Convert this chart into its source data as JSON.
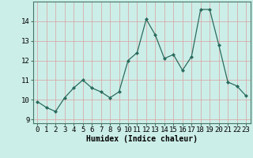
{
  "x": [
    0,
    1,
    2,
    3,
    4,
    5,
    6,
    7,
    8,
    9,
    10,
    11,
    12,
    13,
    14,
    15,
    16,
    17,
    18,
    19,
    20,
    21,
    22,
    23
  ],
  "y": [
    9.9,
    9.6,
    9.4,
    10.1,
    10.6,
    11.0,
    10.6,
    10.4,
    10.1,
    10.4,
    12.0,
    12.4,
    14.1,
    13.3,
    12.1,
    12.3,
    11.5,
    12.2,
    14.6,
    14.6,
    12.8,
    10.9,
    10.7,
    10.2
  ],
  "xlabel": "Humidex (Indice chaleur)",
  "xlim": [
    -0.5,
    23.5
  ],
  "ylim": [
    8.8,
    15.0
  ],
  "yticks": [
    9,
    10,
    11,
    12,
    13,
    14
  ],
  "xticks": [
    0,
    1,
    2,
    3,
    4,
    5,
    6,
    7,
    8,
    9,
    10,
    11,
    12,
    13,
    14,
    15,
    16,
    17,
    18,
    19,
    20,
    21,
    22,
    23
  ],
  "line_color": "#2a6b5e",
  "marker_color": "#2a6b5e",
  "bg_color": "#cceee8",
  "grid_color_v": "#d9a0a0",
  "grid_color_h": "#d9a0a0",
  "axis_label_fontsize": 7,
  "tick_fontsize": 6.5
}
